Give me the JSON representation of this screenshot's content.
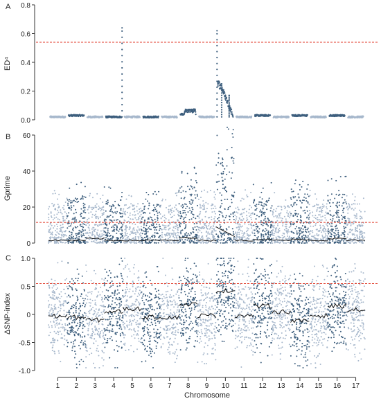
{
  "colors": {
    "dark": "#3e5f7e",
    "light": "#a7b8cc",
    "threshold": "#e03a28",
    "trend": "#111111",
    "axis": "#333333"
  },
  "chart_data": [
    {
      "type": "scatter",
      "panel_label": "A",
      "ylabel": "ED⁴",
      "ylim": [
        0,
        0.8
      ],
      "yticks": [
        0.0,
        0.2,
        0.4,
        0.6,
        0.8
      ],
      "ytick_labels": [
        "0.0",
        "0.2",
        "0.4",
        "0.6",
        "0.8"
      ],
      "threshold": 0.54,
      "chromosomes": [
        "1",
        "2",
        "3",
        "4",
        "5",
        "6",
        "7",
        "8",
        "9",
        "10",
        "11",
        "12",
        "13",
        "14",
        "15",
        "16",
        "17"
      ],
      "chrom_baseline": [
        0.02,
        0.03,
        0.02,
        0.02,
        0.02,
        0.02,
        0.02,
        0.04,
        0.02,
        0.15,
        0.02,
        0.03,
        0.02,
        0.03,
        0.02,
        0.03,
        0.02
      ],
      "peaks": [
        {
          "chromosome": "4",
          "position": 0.95,
          "value": 0.64
        },
        {
          "chromosome": "10",
          "position": 0.05,
          "value": 0.62
        },
        {
          "chromosome": "10",
          "position": 0.3,
          "value": 0.25
        },
        {
          "chromosome": "10",
          "position": 0.7,
          "value": 0.17
        }
      ],
      "grid": false
    },
    {
      "type": "scatter",
      "panel_label": "B",
      "ylabel": "Gprime",
      "ylim": [
        0,
        60
      ],
      "yticks": [
        0,
        20,
        40,
        60
      ],
      "ytick_labels": [
        "0",
        "20",
        "40",
        "60"
      ],
      "threshold": 11.5,
      "chromosomes": [
        "1",
        "2",
        "3",
        "4",
        "5",
        "6",
        "7",
        "8",
        "9",
        "10",
        "11",
        "12",
        "13",
        "14",
        "15",
        "16",
        "17"
      ],
      "chrom_upper": [
        22,
        25,
        21,
        24,
        22,
        23,
        21,
        32,
        22,
        48,
        22,
        25,
        21,
        26,
        22,
        28,
        22
      ],
      "chrom_trend": [
        1.5,
        1.5,
        2.5,
        1.5,
        1.5,
        1.5,
        1.5,
        3.0,
        1.5,
        9.0,
        1.5,
        2.0,
        1.5,
        2.0,
        1.5,
        2.5,
        1.5
      ],
      "grid": false
    },
    {
      "type": "scatter",
      "panel_label": "C",
      "ylabel": "ΔSNP-index",
      "xlabel": "Chromosome",
      "ylim": [
        -1.0,
        1.0
      ],
      "yticks": [
        -1.0,
        -0.5,
        0,
        0.5,
        1.0
      ],
      "ytick_labels": [
        "-1.0",
        "-0.5",
        "0",
        "0.5",
        "1.0"
      ],
      "threshold": 0.55,
      "chromosomes": [
        "1",
        "2",
        "3",
        "4",
        "5",
        "6",
        "7",
        "8",
        "9",
        "10",
        "11",
        "12",
        "13",
        "14",
        "15",
        "16",
        "17"
      ],
      "chrom_trend": [
        -0.03,
        -0.05,
        -0.1,
        0.05,
        0.1,
        -0.05,
        -0.05,
        0.18,
        -0.02,
        0.42,
        -0.02,
        0.15,
        0.05,
        -0.12,
        -0.02,
        0.15,
        0.08
      ],
      "grid": false
    }
  ]
}
